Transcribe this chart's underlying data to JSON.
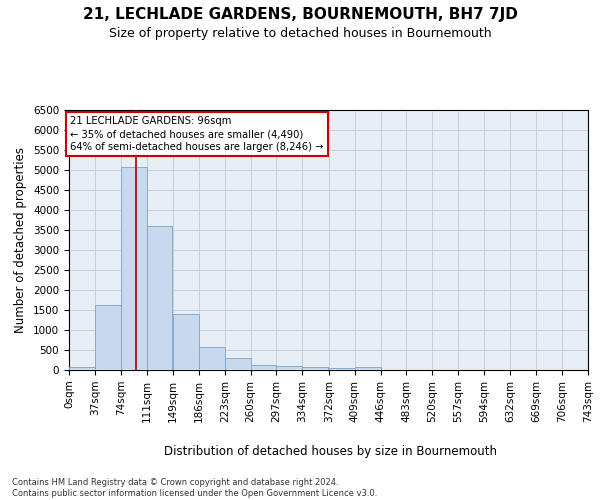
{
  "title": "21, LECHLADE GARDENS, BOURNEMOUTH, BH7 7JD",
  "subtitle": "Size of property relative to detached houses in Bournemouth",
  "xlabel": "Distribution of detached houses by size in Bournemouth",
  "ylabel": "Number of detached properties",
  "footer_line1": "Contains HM Land Registry data © Crown copyright and database right 2024.",
  "footer_line2": "Contains public sector information licensed under the Open Government Licence v3.0.",
  "bin_edges": [
    0,
    37,
    74,
    111,
    149,
    186,
    223,
    260,
    297,
    334,
    372,
    409,
    446,
    483,
    520,
    557,
    594,
    632,
    669,
    706,
    743
  ],
  "bar_heights": [
    75,
    1630,
    5080,
    3590,
    1410,
    580,
    290,
    130,
    100,
    70,
    50,
    65,
    0,
    0,
    0,
    0,
    0,
    0,
    0,
    0
  ],
  "bar_color": "#c9d9ed",
  "bar_edgecolor": "#7ba3c8",
  "grid_color": "#c8d0dc",
  "background_color": "#e8eef5",
  "property_size": 96,
  "vline_color": "#aa0000",
  "annotation_line1": "21 LECHLADE GARDENS: 96sqm",
  "annotation_line2": "← 35% of detached houses are smaller (4,490)",
  "annotation_line3": "64% of semi-detached houses are larger (8,246) →",
  "annotation_box_edgecolor": "#cc0000",
  "ylim_max": 6500,
  "yticks": [
    0,
    500,
    1000,
    1500,
    2000,
    2500,
    3000,
    3500,
    4000,
    4500,
    5000,
    5500,
    6000,
    6500
  ],
  "tick_label_fontsize": 7.5,
  "axis_label_fontsize": 8.5,
  "title_fontsize": 11,
  "subtitle_fontsize": 9
}
